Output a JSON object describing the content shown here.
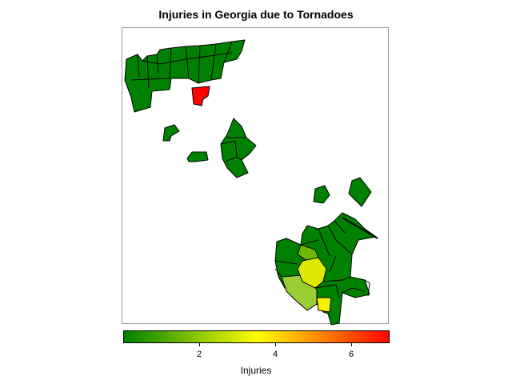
{
  "title": "Injuries in Georgia due to Tornadoes",
  "colors": {
    "low": "#008000",
    "mid": "#ffff00",
    "high": "#ff0000"
  },
  "legend": {
    "title": "Injuries",
    "min": 0,
    "max": 7,
    "ticks": [
      {
        "value": 2,
        "label": "2"
      },
      {
        "value": 4,
        "label": "4"
      },
      {
        "value": 6,
        "label": "6"
      }
    ]
  }
}
